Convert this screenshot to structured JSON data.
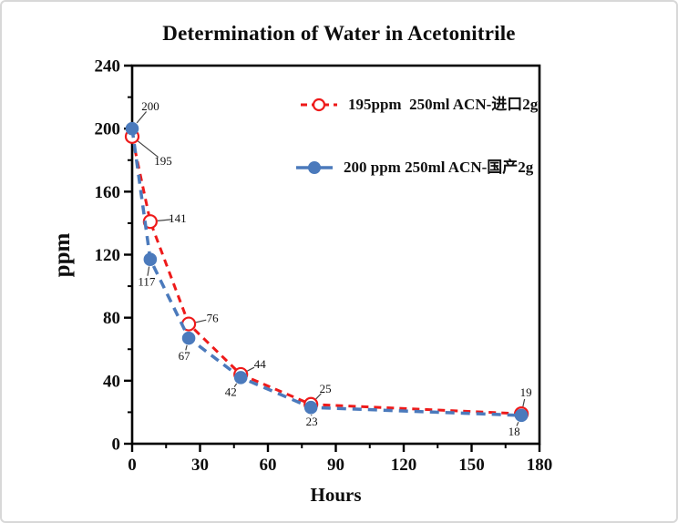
{
  "window": {
    "background": "#ffffff",
    "border_color": "#d8d8d8"
  },
  "chart_data": {
    "type": "line",
    "title": "Determination of Water in Acetonitrile",
    "xlabel": "Hours",
    "ylabel": "ppm",
    "xlim": [
      0,
      180
    ],
    "ylim": [
      0,
      240
    ],
    "x_major_ticks": [
      0,
      30,
      60,
      90,
      120,
      150,
      180
    ],
    "x_minor_tick_step": 15,
    "y_major_ticks": [
      0,
      40,
      80,
      120,
      160,
      200,
      240
    ],
    "y_minor_tick_step": 20,
    "grid": false,
    "frame_color": "#000000",
    "legend": {
      "position": "inside-top-center"
    },
    "series": [
      {
        "name": "195ppm  250ml ACN-进口2g",
        "color": "#ee1a1a",
        "line_style": "dashed",
        "marker": "open-circle",
        "x": [
          0,
          8,
          25,
          48,
          79,
          172
        ],
        "y": [
          195,
          141,
          76,
          44,
          25,
          19
        ],
        "point_labels": [
          "195",
          "141",
          "76",
          "44",
          "25",
          "19"
        ],
        "label_offsets": [
          [
            34,
            27
          ],
          [
            30,
            -3
          ],
          [
            26,
            -6
          ],
          [
            21,
            -11
          ],
          [
            16,
            -17
          ],
          [
            5,
            -23
          ]
        ]
      },
      {
        "name": "200 ppm 250ml ACN-国产2g",
        "color": "#4b7abc",
        "line_style": "dashed",
        "marker": "filled-circle",
        "x": [
          0,
          8,
          25,
          48,
          79,
          172
        ],
        "y": [
          200,
          117,
          67,
          42,
          23,
          18
        ],
        "point_labels": [
          "200",
          "117",
          "67",
          "42",
          "23",
          "18"
        ],
        "label_offsets": [
          [
            20,
            -24
          ],
          [
            -4,
            25
          ],
          [
            -5,
            20
          ],
          [
            -11,
            16
          ],
          [
            1,
            16
          ],
          [
            -8,
            18
          ]
        ]
      }
    ]
  }
}
